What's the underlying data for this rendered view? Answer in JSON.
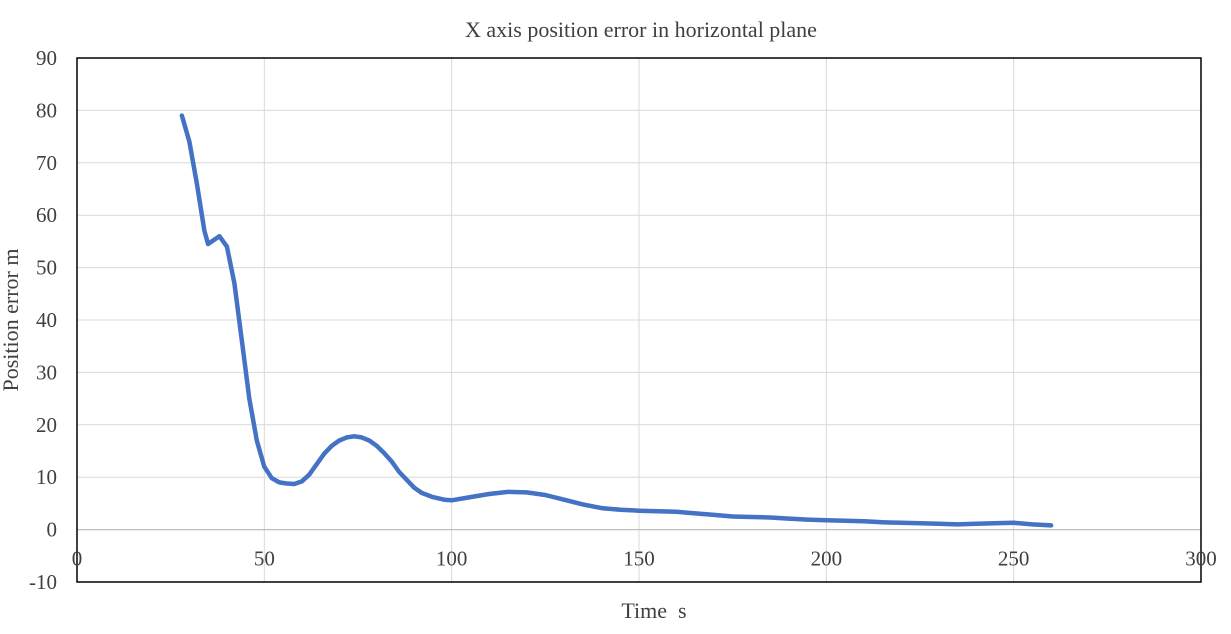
{
  "chart_data": {
    "type": "line",
    "title": "X axis position error in horizontal plane",
    "xlabel": "Time  s",
    "ylabel": "Position error m",
    "xlim": [
      0,
      300
    ],
    "ylim": [
      -10,
      90
    ],
    "xticks": [
      0,
      50,
      100,
      150,
      200,
      250,
      300
    ],
    "yticks": [
      -10,
      0,
      10,
      20,
      30,
      40,
      50,
      60,
      70,
      80,
      90
    ],
    "grid": true,
    "legend": "none",
    "series": [
      {
        "color": "#4472C4",
        "x": [
          28,
          30,
          32,
          34,
          35,
          36,
          38,
          40,
          42,
          44,
          46,
          48,
          50,
          52,
          54,
          56,
          58,
          60,
          62,
          64,
          66,
          68,
          70,
          72,
          74,
          76,
          78,
          80,
          82,
          84,
          86,
          88,
          90,
          92,
          95,
          98,
          100,
          105,
          110,
          115,
          120,
          125,
          130,
          135,
          140,
          145,
          150,
          155,
          160,
          165,
          170,
          175,
          180,
          185,
          190,
          195,
          200,
          205,
          210,
          215,
          220,
          225,
          230,
          235,
          240,
          245,
          250,
          255,
          260
        ],
        "y": [
          79,
          74,
          66,
          57,
          54.5,
          55,
          56,
          54,
          47,
          36,
          25,
          17,
          12,
          9.8,
          9,
          8.8,
          8.7,
          9.2,
          10.5,
          12.5,
          14.5,
          16,
          17,
          17.6,
          17.8,
          17.6,
          17,
          16,
          14.6,
          13,
          11,
          9.5,
          8,
          7,
          6.2,
          5.7,
          5.6,
          6.2,
          6.8,
          7.2,
          7.1,
          6.6,
          5.7,
          4.8,
          4.1,
          3.8,
          3.6,
          3.5,
          3.4,
          3.1,
          2.8,
          2.5,
          2.4,
          2.3,
          2.1,
          1.9,
          1.8,
          1.7,
          1.6,
          1.4,
          1.3,
          1.2,
          1.1,
          1.0,
          1.1,
          1.2,
          1.3,
          1.0,
          0.8
        ]
      }
    ]
  }
}
